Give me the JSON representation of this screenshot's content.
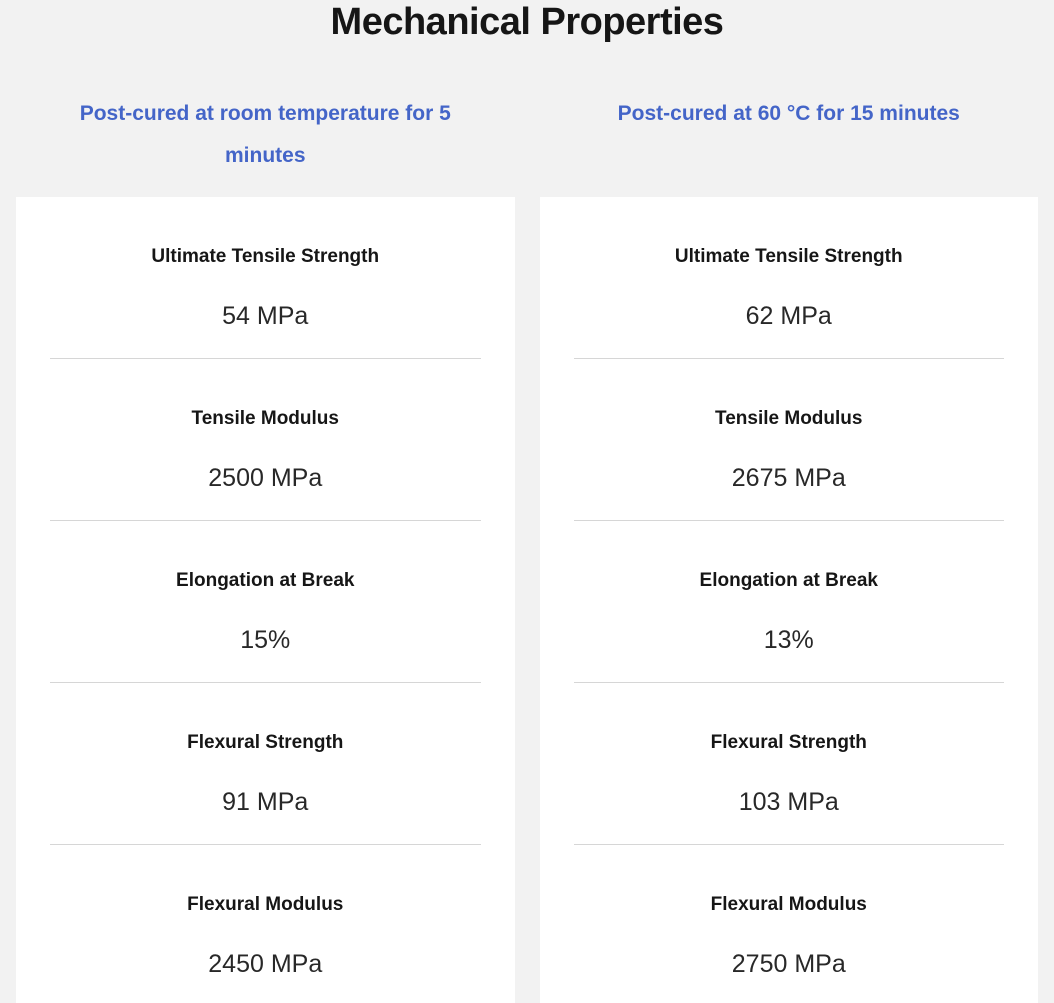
{
  "page": {
    "title": "Mechanical Properties"
  },
  "colors": {
    "background": "#f2f2f2",
    "card_background": "#ffffff",
    "header_blue": "#4465c8",
    "text_dark": "#161616",
    "divider": "#d6d6d6"
  },
  "columns": [
    {
      "header": "Post-cured at room temperature for 5 minutes",
      "properties": [
        {
          "label": "Ultimate Tensile Strength",
          "value": "54 MPa"
        },
        {
          "label": "Tensile Modulus",
          "value": "2500 MPa"
        },
        {
          "label": "Elongation at Break",
          "value": "15%"
        },
        {
          "label": "Flexural Strength",
          "value": "91 MPa"
        },
        {
          "label": "Flexural Modulus",
          "value": "2450 MPa"
        }
      ]
    },
    {
      "header": "Post-cured at 60 °C for 15 minutes",
      "properties": [
        {
          "label": "Ultimate Tensile Strength",
          "value": "62 MPa"
        },
        {
          "label": "Tensile Modulus",
          "value": "2675 MPa"
        },
        {
          "label": "Elongation at Break",
          "value": "13%"
        },
        {
          "label": "Flexural Strength",
          "value": "103 MPa"
        },
        {
          "label": "Flexural Modulus",
          "value": "2750 MPa"
        }
      ]
    }
  ]
}
